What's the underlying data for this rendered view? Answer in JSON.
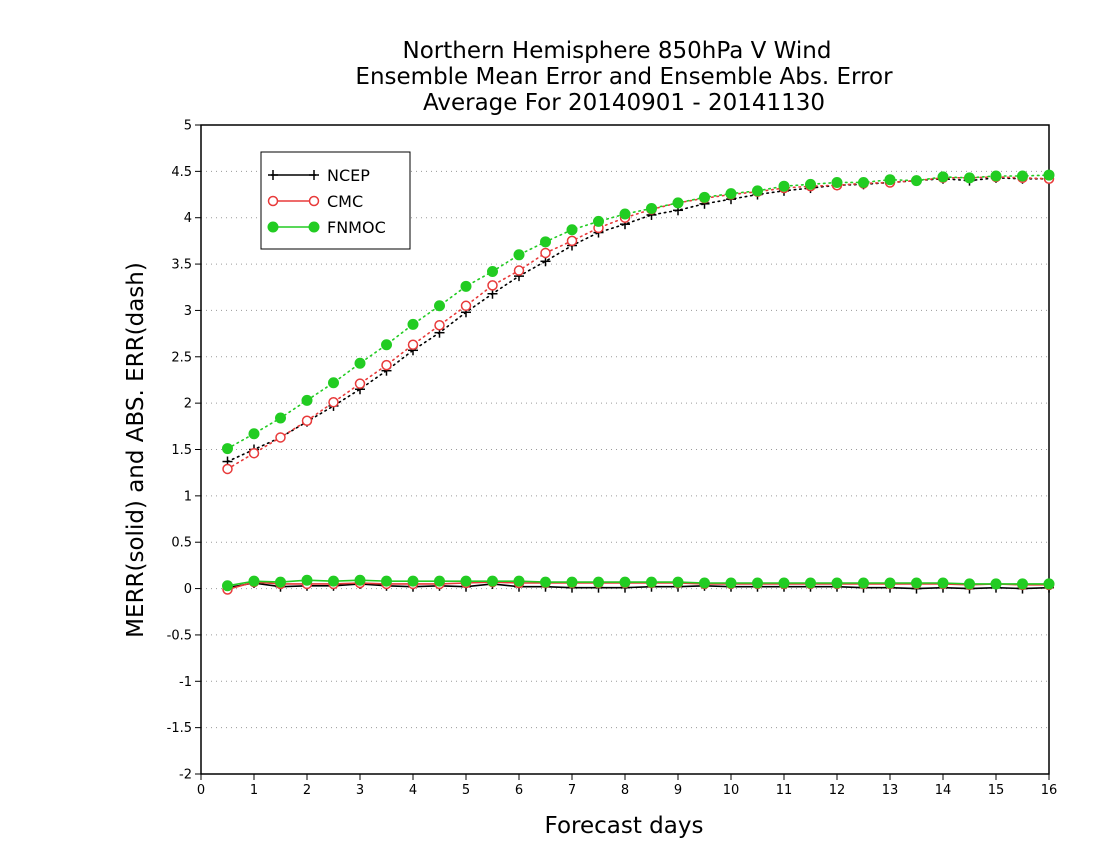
{
  "chart_data": {
    "type": "line",
    "title": [
      "Northern Hemisphere 850hPa V Wind",
      "Ensemble Mean Error and Ensemble Abs. Error",
      "Average For 20140901 - 20141130"
    ],
    "xlabel": "Forecast days",
    "ylabel": "MERR(solid) and ABS. ERR(dash)",
    "xlim": [
      0,
      16
    ],
    "ylim": [
      -2,
      5
    ],
    "xticks": [
      0,
      1,
      2,
      3,
      4,
      5,
      6,
      7,
      8,
      9,
      10,
      11,
      12,
      13,
      14,
      15,
      16
    ],
    "yticks": [
      -2,
      -1.5,
      -1,
      -0.5,
      0,
      0.5,
      1,
      1.5,
      2,
      2.5,
      3,
      3.5,
      4,
      4.5,
      5
    ],
    "ytick_labels": [
      "-2",
      "-1.5",
      "-1",
      "-0.5",
      "0",
      "0.5",
      "1",
      "1.5",
      "2",
      "2.5",
      "3",
      "3.5",
      "4",
      "4.5",
      "5"
    ],
    "grid": "horizontal dotted",
    "legend_position": "top-left",
    "x": [
      0.5,
      1,
      1.5,
      2,
      2.5,
      3,
      3.5,
      4,
      4.5,
      5,
      5.5,
      6,
      6.5,
      7,
      7.5,
      8,
      8.5,
      9,
      9.5,
      10,
      10.5,
      11,
      11.5,
      12,
      12.5,
      13,
      13.5,
      14,
      14.5,
      15,
      15.5,
      16
    ],
    "series": [
      {
        "name": "NCEP",
        "color": "#000000",
        "marker": "plus",
        "abs_err": [
          1.37,
          1.5,
          1.63,
          1.8,
          1.97,
          2.15,
          2.35,
          2.57,
          2.76,
          2.98,
          3.18,
          3.37,
          3.53,
          3.7,
          3.84,
          3.93,
          4.03,
          4.08,
          4.15,
          4.2,
          4.25,
          4.29,
          4.32,
          4.35,
          4.36,
          4.38,
          4.4,
          4.42,
          4.4,
          4.43,
          4.42,
          4.42
        ],
        "mean_err": [
          0.01,
          0.06,
          0.02,
          0.03,
          0.03,
          0.05,
          0.03,
          0.02,
          0.03,
          0.02,
          0.05,
          0.02,
          0.02,
          0.01,
          0.01,
          0.01,
          0.02,
          0.02,
          0.03,
          0.02,
          0.02,
          0.02,
          0.02,
          0.02,
          0.01,
          0.01,
          0.0,
          0.01,
          0.0,
          0.01,
          0.0,
          0.01
        ]
      },
      {
        "name": "CMC",
        "color": "#e83a3a",
        "marker": "open-circle",
        "abs_err": [
          1.29,
          1.46,
          1.63,
          1.81,
          2.01,
          2.21,
          2.41,
          2.63,
          2.84,
          3.05,
          3.27,
          3.43,
          3.62,
          3.75,
          3.89,
          4.0,
          4.09,
          4.16,
          4.21,
          4.25,
          4.28,
          4.32,
          4.34,
          4.35,
          4.37,
          4.38,
          4.4,
          4.43,
          4.43,
          4.44,
          4.43,
          4.42
        ],
        "mean_err": [
          -0.01,
          0.07,
          0.05,
          0.05,
          0.05,
          0.06,
          0.05,
          0.05,
          0.05,
          0.06,
          0.07,
          0.06,
          0.06,
          0.06,
          0.06,
          0.06,
          0.06,
          0.06,
          0.05,
          0.05,
          0.05,
          0.05,
          0.05,
          0.05,
          0.05,
          0.05,
          0.05,
          0.05,
          0.04,
          0.05,
          0.04,
          0.04
        ]
      },
      {
        "name": "FNMOC",
        "color": "#22cc22",
        "marker": "filled-circle",
        "abs_err": [
          1.51,
          1.67,
          1.84,
          2.03,
          2.22,
          2.43,
          2.63,
          2.85,
          3.05,
          3.26,
          3.42,
          3.6,
          3.74,
          3.87,
          3.96,
          4.04,
          4.1,
          4.16,
          4.22,
          4.26,
          4.29,
          4.34,
          4.36,
          4.38,
          4.38,
          4.41,
          4.4,
          4.44,
          4.43,
          4.45,
          4.45,
          4.46
        ],
        "mean_err": [
          0.03,
          0.08,
          0.07,
          0.09,
          0.08,
          0.09,
          0.08,
          0.08,
          0.08,
          0.08,
          0.08,
          0.08,
          0.07,
          0.07,
          0.07,
          0.07,
          0.07,
          0.07,
          0.06,
          0.06,
          0.06,
          0.06,
          0.06,
          0.06,
          0.06,
          0.06,
          0.06,
          0.06,
          0.05,
          0.05,
          0.05,
          0.05
        ]
      }
    ]
  }
}
